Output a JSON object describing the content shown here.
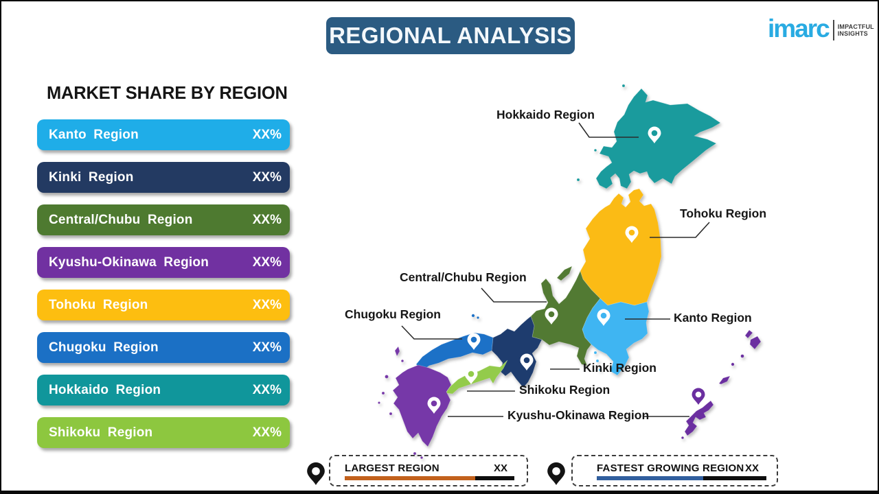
{
  "header": {
    "title": "REGIONAL ANALYSIS",
    "bg": "#2B5B82"
  },
  "logo": {
    "brand": "imarc",
    "brand_color": "#29ABE2",
    "tagline_line1": "IMPACTFUL",
    "tagline_line2": "INSIGHTS"
  },
  "market_share": {
    "heading": "MARKET SHARE BY REGION",
    "items": [
      {
        "label": "Kanto Region",
        "value": "XX%",
        "color": "#1FADE8"
      },
      {
        "label": "Kinki Region",
        "value": "XX%",
        "color": "#233A62"
      },
      {
        "label": "Central/Chubu Region",
        "value": "XX%",
        "color": "#4E7A30"
      },
      {
        "label": "Kyushu-Okinawa Region",
        "value": "XX%",
        "color": "#7131A1"
      },
      {
        "label": "Tohoku Region",
        "value": "XX%",
        "color": "#FDBE10"
      },
      {
        "label": "Chugoku Region",
        "value": "XX%",
        "color": "#1B70C5"
      },
      {
        "label": "Hokkaido Region",
        "value": "XX%",
        "color": "#10969B"
      },
      {
        "label": "Shikoku Region",
        "value": "XX%",
        "color": "#8DC73F"
      }
    ]
  },
  "map": {
    "labels": {
      "hokkaido": "Hokkaido Region",
      "tohoku": "Tohoku Region",
      "central_chubu": "Central/Chubu Region",
      "chugoku": "Chugoku Region",
      "kanto": "Kanto Region",
      "kinki": "Kinki Region",
      "shikoku": "Shikoku Region",
      "kyushu_okinawa": "Kyushu-Okinawa Region"
    },
    "region_colors": {
      "hokkaido": "#1A9B9D",
      "tohoku": "#FBBB15",
      "kanto": "#3FB5F2",
      "central_chubu": "#527A33",
      "kinki": "#1E3C6E",
      "chugoku": "#1C71C7",
      "shikoku": "#93CB4B",
      "kyushu": "#7638A8",
      "okinawa": "#6B2FA0"
    },
    "pin_ring_color": "#FFFFFF"
  },
  "legend": {
    "pin_color": "#141414",
    "largest": {
      "label": "LARGEST REGION",
      "value": "XX",
      "bar_color": "#C2611C"
    },
    "fastest": {
      "label": "FASTEST GROWING REGION",
      "value": "XX",
      "bar_color": "#315F9E"
    }
  }
}
